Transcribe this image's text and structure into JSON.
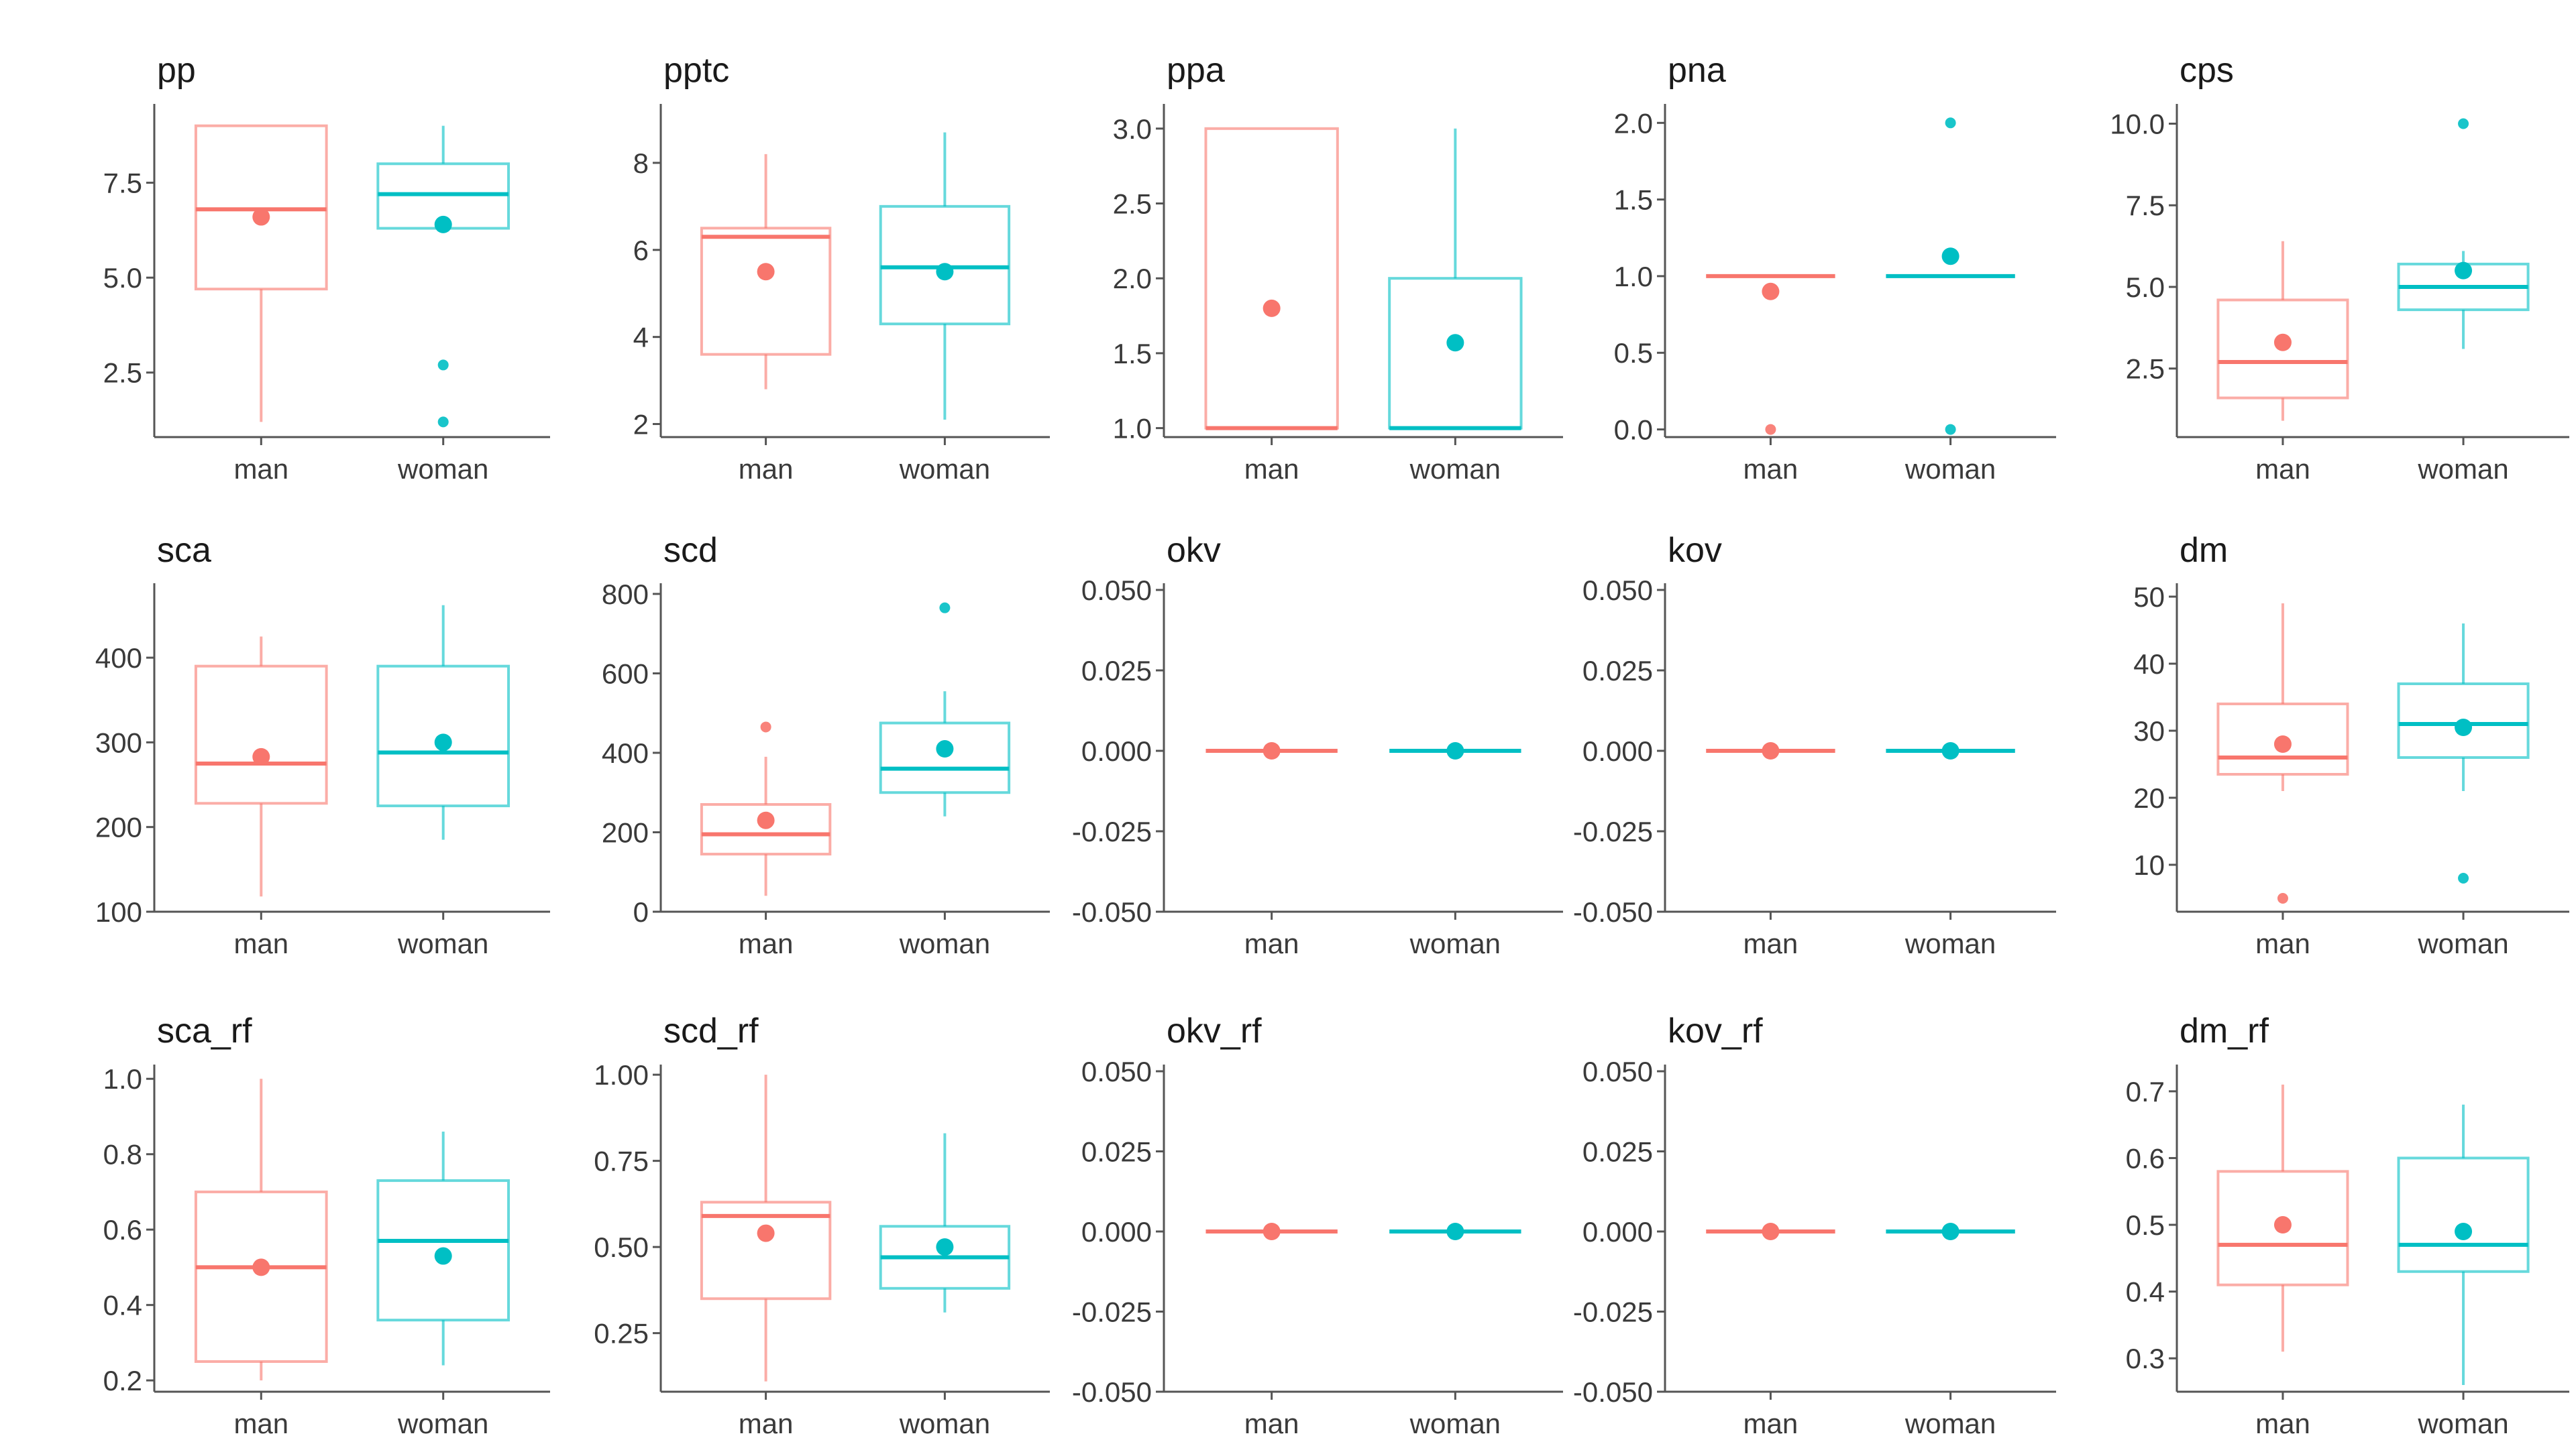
{
  "colors": {
    "man": "#F8766D",
    "woman": "#00BFC4"
  },
  "chart_data": [
    {
      "type": "box",
      "title": "pp",
      "categories": [
        "man",
        "woman"
      ],
      "ylim": [
        0.8,
        9.4
      ],
      "yticks": [
        2.5,
        5.0,
        7.5
      ],
      "ytick_labels": [
        "2.5",
        "5.0",
        "7.5"
      ],
      "boxes": [
        {
          "category": "man",
          "min": 1.2,
          "q1": 4.7,
          "median": 6.8,
          "q3": 9.0,
          "max": 9.0,
          "mean": 6.6,
          "outliers": []
        },
        {
          "category": "woman",
          "min": 6.3,
          "q1": 6.3,
          "median": 7.2,
          "q3": 8.0,
          "max": 9.0,
          "mean": 6.4,
          "outliers": [
            2.7,
            1.2
          ]
        }
      ]
    },
    {
      "type": "box",
      "title": "pptc",
      "categories": [
        "man",
        "woman"
      ],
      "ylim": [
        1.7,
        9.2
      ],
      "yticks": [
        2,
        4,
        6,
        8
      ],
      "ytick_labels": [
        "2",
        "4",
        "6",
        "8"
      ],
      "boxes": [
        {
          "category": "man",
          "min": 2.8,
          "q1": 3.6,
          "median": 6.3,
          "q3": 6.5,
          "max": 8.2,
          "mean": 5.5,
          "outliers": []
        },
        {
          "category": "woman",
          "min": 2.1,
          "q1": 4.3,
          "median": 5.6,
          "q3": 7.0,
          "max": 8.7,
          "mean": 5.5,
          "outliers": []
        }
      ]
    },
    {
      "type": "box",
      "title": "ppa",
      "categories": [
        "man",
        "woman"
      ],
      "ylim": [
        0.94,
        3.12
      ],
      "yticks": [
        1.0,
        1.5,
        2.0,
        2.5,
        3.0
      ],
      "ytick_labels": [
        "1.0",
        "1.5",
        "2.0",
        "2.5",
        "3.0"
      ],
      "boxes": [
        {
          "category": "man",
          "min": 1.0,
          "q1": 1.0,
          "median": 1.0,
          "q3": 3.0,
          "max": 3.0,
          "mean": 1.8,
          "outliers": []
        },
        {
          "category": "woman",
          "min": 1.0,
          "q1": 1.0,
          "median": 1.0,
          "q3": 2.0,
          "max": 3.0,
          "mean": 1.57,
          "outliers": []
        }
      ]
    },
    {
      "type": "box",
      "title": "pna",
      "categories": [
        "man",
        "woman"
      ],
      "ylim": [
        -0.05,
        2.08
      ],
      "yticks": [
        0.0,
        0.5,
        1.0,
        1.5,
        2.0
      ],
      "ytick_labels": [
        "0.0",
        "0.5",
        "1.0",
        "1.5",
        "2.0"
      ],
      "boxes": [
        {
          "category": "man",
          "min": 1.0,
          "q1": 1.0,
          "median": 1.0,
          "q3": 1.0,
          "max": 1.0,
          "mean": 0.9,
          "outliers": [
            0.0
          ]
        },
        {
          "category": "woman",
          "min": 1.0,
          "q1": 1.0,
          "median": 1.0,
          "q3": 1.0,
          "max": 1.0,
          "mean": 1.13,
          "outliers": [
            2.0,
            0.0
          ]
        }
      ]
    },
    {
      "type": "box",
      "title": "cps",
      "categories": [
        "man",
        "woman"
      ],
      "ylim": [
        0.4,
        10.4
      ],
      "yticks": [
        2.5,
        5.0,
        7.5,
        10.0
      ],
      "ytick_labels": [
        "2.5",
        "5.0",
        "7.5",
        "10.0"
      ],
      "boxes": [
        {
          "category": "man",
          "min": 0.9,
          "q1": 1.6,
          "median": 2.7,
          "q3": 4.6,
          "max": 6.4,
          "mean": 3.3,
          "outliers": []
        },
        {
          "category": "woman",
          "min": 3.1,
          "q1": 4.3,
          "median": 5.0,
          "q3": 5.7,
          "max": 6.1,
          "mean": 5.5,
          "outliers": [
            10.0
          ]
        }
      ]
    },
    {
      "type": "box",
      "title": "sca",
      "categories": [
        "man",
        "woman"
      ],
      "ylim": [
        100,
        480
      ],
      "yticks": [
        100,
        200,
        300,
        400
      ],
      "ytick_labels": [
        "100",
        "200",
        "300",
        "400"
      ],
      "boxes": [
        {
          "category": "man",
          "min": 118,
          "q1": 228,
          "median": 275,
          "q3": 390,
          "max": 425,
          "mean": 283,
          "outliers": []
        },
        {
          "category": "woman",
          "min": 185,
          "q1": 225,
          "median": 288,
          "q3": 390,
          "max": 462,
          "mean": 300,
          "outliers": []
        }
      ]
    },
    {
      "type": "box",
      "title": "scd",
      "categories": [
        "man",
        "woman"
      ],
      "ylim": [
        0,
        810
      ],
      "yticks": [
        0,
        200,
        400,
        600,
        800
      ],
      "ytick_labels": [
        "0",
        "200",
        "400",
        "600",
        "800"
      ],
      "boxes": [
        {
          "category": "man",
          "min": 40,
          "q1": 145,
          "median": 195,
          "q3": 270,
          "max": 390,
          "mean": 230,
          "outliers": [
            465
          ]
        },
        {
          "category": "woman",
          "min": 240,
          "q1": 300,
          "median": 360,
          "q3": 475,
          "max": 555,
          "mean": 410,
          "outliers": [
            765
          ]
        }
      ]
    },
    {
      "type": "box",
      "title": "okv",
      "categories": [
        "man",
        "woman"
      ],
      "ylim": [
        -0.05,
        0.05
      ],
      "yticks": [
        -0.05,
        -0.025,
        0.0,
        0.025,
        0.05
      ],
      "ytick_labels": [
        "-0.050",
        "-0.025",
        "0.000",
        "0.025",
        "0.050"
      ],
      "boxes": [
        {
          "category": "man",
          "min": 0,
          "q1": 0,
          "median": 0,
          "q3": 0,
          "max": 0,
          "mean": 0,
          "outliers": []
        },
        {
          "category": "woman",
          "min": 0,
          "q1": 0,
          "median": 0,
          "q3": 0,
          "max": 0,
          "mean": 0,
          "outliers": []
        }
      ]
    },
    {
      "type": "box",
      "title": "kov",
      "categories": [
        "man",
        "woman"
      ],
      "ylim": [
        -0.05,
        0.05
      ],
      "yticks": [
        -0.05,
        -0.025,
        0.0,
        0.025,
        0.05
      ],
      "ytick_labels": [
        "-0.050",
        "-0.025",
        "0.000",
        "0.025",
        "0.050"
      ],
      "boxes": [
        {
          "category": "man",
          "min": 0,
          "q1": 0,
          "median": 0,
          "q3": 0,
          "max": 0,
          "mean": 0,
          "outliers": []
        },
        {
          "category": "woman",
          "min": 0,
          "q1": 0,
          "median": 0,
          "q3": 0,
          "max": 0,
          "mean": 0,
          "outliers": []
        }
      ]
    },
    {
      "type": "box",
      "title": "dm",
      "categories": [
        "man",
        "woman"
      ],
      "ylim": [
        3,
        51
      ],
      "yticks": [
        10,
        20,
        30,
        40,
        50
      ],
      "ytick_labels": [
        "10",
        "20",
        "30",
        "40",
        "50"
      ],
      "boxes": [
        {
          "category": "man",
          "min": 21,
          "q1": 23.5,
          "median": 26,
          "q3": 34,
          "max": 49,
          "mean": 28,
          "outliers": [
            5
          ]
        },
        {
          "category": "woman",
          "min": 21,
          "q1": 26,
          "median": 31,
          "q3": 37,
          "max": 46,
          "mean": 30.5,
          "outliers": [
            8
          ]
        }
      ]
    },
    {
      "type": "box",
      "title": "sca_rf",
      "categories": [
        "man",
        "woman"
      ],
      "ylim": [
        0.17,
        1.02
      ],
      "yticks": [
        0.2,
        0.4,
        0.6,
        0.8,
        1.0
      ],
      "ytick_labels": [
        "0.2",
        "0.4",
        "0.6",
        "0.8",
        "1.0"
      ],
      "boxes": [
        {
          "category": "man",
          "min": 0.2,
          "q1": 0.25,
          "median": 0.5,
          "q3": 0.7,
          "max": 1.0,
          "mean": 0.5,
          "outliers": []
        },
        {
          "category": "woman",
          "min": 0.24,
          "q1": 0.36,
          "median": 0.57,
          "q3": 0.73,
          "max": 0.86,
          "mean": 0.53,
          "outliers": []
        }
      ]
    },
    {
      "type": "box",
      "title": "scd_rf",
      "categories": [
        "man",
        "woman"
      ],
      "ylim": [
        0.08,
        1.01
      ],
      "yticks": [
        0.25,
        0.5,
        0.75,
        1.0
      ],
      "ytick_labels": [
        "0.25",
        "0.50",
        "0.75",
        "1.00"
      ],
      "boxes": [
        {
          "category": "man",
          "min": 0.11,
          "q1": 0.35,
          "median": 0.59,
          "q3": 0.63,
          "max": 1.0,
          "mean": 0.54,
          "outliers": []
        },
        {
          "category": "woman",
          "min": 0.31,
          "q1": 0.38,
          "median": 0.47,
          "q3": 0.56,
          "max": 0.83,
          "mean": 0.5,
          "outliers": []
        }
      ]
    },
    {
      "type": "box",
      "title": "okv_rf",
      "categories": [
        "man",
        "woman"
      ],
      "ylim": [
        -0.05,
        0.05
      ],
      "yticks": [
        -0.05,
        -0.025,
        0.0,
        0.025,
        0.05
      ],
      "ytick_labels": [
        "-0.050",
        "-0.025",
        "0.000",
        "0.025",
        "0.050"
      ],
      "boxes": [
        {
          "category": "man",
          "min": 0,
          "q1": 0,
          "median": 0,
          "q3": 0,
          "max": 0,
          "mean": 0,
          "outliers": []
        },
        {
          "category": "woman",
          "min": 0,
          "q1": 0,
          "median": 0,
          "q3": 0,
          "max": 0,
          "mean": 0,
          "outliers": []
        }
      ]
    },
    {
      "type": "box",
      "title": "kov_rf",
      "categories": [
        "man",
        "woman"
      ],
      "ylim": [
        -0.05,
        0.05
      ],
      "yticks": [
        -0.05,
        -0.025,
        0.0,
        0.025,
        0.05
      ],
      "ytick_labels": [
        "-0.050",
        "-0.025",
        "0.000",
        "0.025",
        "0.050"
      ],
      "boxes": [
        {
          "category": "man",
          "min": 0,
          "q1": 0,
          "median": 0,
          "q3": 0,
          "max": 0,
          "mean": 0,
          "outliers": []
        },
        {
          "category": "woman",
          "min": 0,
          "q1": 0,
          "median": 0,
          "q3": 0,
          "max": 0,
          "mean": 0,
          "outliers": []
        }
      ]
    },
    {
      "type": "box",
      "title": "dm_rf",
      "categories": [
        "man",
        "woman"
      ],
      "ylim": [
        0.25,
        0.73
      ],
      "yticks": [
        0.3,
        0.4,
        0.5,
        0.6,
        0.7
      ],
      "ytick_labels": [
        "0.3",
        "0.4",
        "0.5",
        "0.6",
        "0.7"
      ],
      "boxes": [
        {
          "category": "man",
          "min": 0.31,
          "q1": 0.41,
          "median": 0.47,
          "q3": 0.58,
          "max": 0.71,
          "mean": 0.5,
          "outliers": []
        },
        {
          "category": "woman",
          "min": 0.26,
          "q1": 0.43,
          "median": 0.47,
          "q3": 0.6,
          "max": 0.68,
          "mean": 0.49,
          "outliers": []
        }
      ]
    }
  ]
}
